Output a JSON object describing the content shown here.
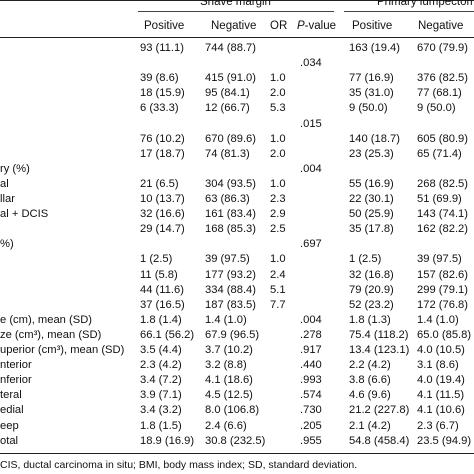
{
  "header": {
    "shave_group": "Shave margin",
    "primary_group": "Primary lumpectomy",
    "col_positive": "Positive",
    "col_negative": "Negative",
    "col_or": "OR",
    "col_p_italic": "P",
    "col_p_rest": "-value"
  },
  "rows": [
    {
      "label": "",
      "spos": "93 (11.1)",
      "sneg": "744 (88.7)",
      "or": "",
      "p": "",
      "ppos": "163 (19.4)",
      "pneg": "670 (79.9)"
    },
    {
      "label": "",
      "spos": "",
      "sneg": "",
      "or": "",
      "p": ".034",
      "ppos": "",
      "pneg": ""
    },
    {
      "label": "",
      "spos": "39 (8.6)",
      "sneg": "415 (91.0)",
      "or": "1.0",
      "p": "",
      "ppos": "77 (16.9)",
      "pneg": "376 (82.5)"
    },
    {
      "label": "",
      "spos": "18 (15.9)",
      "sneg": "95 (84.1)",
      "or": "2.0",
      "p": "",
      "ppos": "35 (31.0)",
      "pneg": "77 (68.1)"
    },
    {
      "label": "",
      "spos": "6 (33.3)",
      "sneg": "12 (66.7)",
      "or": "5.3",
      "p": "",
      "ppos": "9 (50.0)",
      "pneg": "9 (50.0)"
    },
    {
      "label": "",
      "spos": "",
      "sneg": "",
      "or": "",
      "p": ".015",
      "ppos": "",
      "pneg": ""
    },
    {
      "label": "",
      "spos": "76 (10.2)",
      "sneg": "670 (89.6)",
      "or": "1.0",
      "p": "",
      "ppos": "140 (18.7)",
      "pneg": "605 (80.9)"
    },
    {
      "label": "",
      "spos": "17 (18.7)",
      "sneg": "74 (81.3)",
      "or": "2.0",
      "p": "",
      "ppos": "23 (25.3)",
      "pneg": "65 (71.4)"
    },
    {
      "label": "ry (%)",
      "spos": "",
      "sneg": "",
      "or": "",
      "p": ".004",
      "ppos": "",
      "pneg": ""
    },
    {
      "label": "al",
      "spos": "21 (6.5)",
      "sneg": "304 (93.5)",
      "or": "1.0",
      "p": "",
      "ppos": "55 (16.9)",
      "pneg": "268 (82.5)"
    },
    {
      "label": "llar",
      "spos": "10 (13.7)",
      "sneg": "63 (86.3)",
      "or": "2.3",
      "p": "",
      "ppos": "22 (30.1)",
      "pneg": "51 (69.9)"
    },
    {
      "label": "al + DCIS",
      "spos": "32 (16.6)",
      "sneg": "161 (83.4)",
      "or": "2.9",
      "p": "",
      "ppos": "50 (25.9)",
      "pneg": "143 (74.1)"
    },
    {
      "label": "",
      "spos": "29 (14.7)",
      "sneg": "168 (85.3)",
      "or": "2.5",
      "p": "",
      "ppos": "35 (17.8)",
      "pneg": "162 (82.2)"
    },
    {
      "label": "%)",
      "spos": "",
      "sneg": "",
      "or": "",
      "p": ".697",
      "ppos": "",
      "pneg": ""
    },
    {
      "label": "",
      "spos": "1 (2.5)",
      "sneg": "39 (97.5)",
      "or": "1.0",
      "p": "",
      "ppos": "1 (2.5)",
      "pneg": "39 (97.5)"
    },
    {
      "label": "",
      "spos": "11 (5.8)",
      "sneg": "177 (93.2)",
      "or": "2.4",
      "p": "",
      "ppos": "32 (16.8)",
      "pneg": "157 (82.6)"
    },
    {
      "label": "",
      "spos": "44 (11.6)",
      "sneg": "334 (88.4)",
      "or": "5.1",
      "p": "",
      "ppos": "79 (20.9)",
      "pneg": "299 (79.1)"
    },
    {
      "label": "",
      "spos": "37 (16.5)",
      "sneg": "187 (83.5)",
      "or": "7.7",
      "p": "",
      "ppos": "52 (23.2)",
      "pneg": "172 (76.8)"
    },
    {
      "label": "e (cm), mean (SD)",
      "spos": "1.8 (1.4)",
      "sneg": "1.4 (1.0)",
      "or": "",
      "p": ".004",
      "ppos": "1.8 (1.3)",
      "pneg": "1.4 (1.0)"
    },
    {
      "label": "ze (cm³), mean (SD)",
      "spos": "66.1 (56.2)",
      "sneg": "67.9 (96.5)",
      "or": "",
      "p": ".278",
      "ppos": "75.4 (118.2)",
      "pneg": "65.0 (85.8)"
    },
    {
      "label": "uperior (cm³), mean (SD)",
      "spos": "3.5 (4.4)",
      "sneg": "3.7 (10.2)",
      "or": "",
      "p": ".917",
      "ppos": "13.4 (123.1)",
      "pneg": "4.0 (10.5)"
    },
    {
      "label": "nterior",
      "spos": "2.3 (4.2)",
      "sneg": "3.2 (8.8)",
      "or": "",
      "p": ".440",
      "ppos": "2.2 (4.2)",
      "pneg": "3.1 (8.6)"
    },
    {
      "label": "nferior",
      "spos": "3.4 (7.2)",
      "sneg": "4.1 (18.6)",
      "or": "",
      "p": ".993",
      "ppos": "3.8 (6.6)",
      "pneg": "4.0 (19.4)"
    },
    {
      "label": "teral",
      "spos": "3.9 (7.1)",
      "sneg": "4.5 (12.5)",
      "or": "",
      "p": ".574",
      "ppos": "4.6 (9.6)",
      "pneg": "4.1 (11.5)"
    },
    {
      "label": "edial",
      "spos": "3.4 (3.2)",
      "sneg": "8.0 (106.8)",
      "or": "",
      "p": ".730",
      "ppos": "21.2 (227.8)",
      "pneg": "4.1 (10.6)"
    },
    {
      "label": "eep",
      "spos": "1.8 (1.5)",
      "sneg": "2.4 (6.6)",
      "or": "",
      "p": ".205",
      "ppos": "2.1 (4.2)",
      "pneg": "2.3 (6.7)"
    },
    {
      "label": "otal",
      "spos": "18.9 (16.9)",
      "sneg": "30.8 (232.5)",
      "or": "",
      "p": ".955",
      "ppos": "54.8 (458.4)",
      "pneg": "23.5 (94.9)"
    }
  ],
  "footnote": "CIS, ductal carcinoma in situ; BMI, body mass index; SD, standard deviation."
}
